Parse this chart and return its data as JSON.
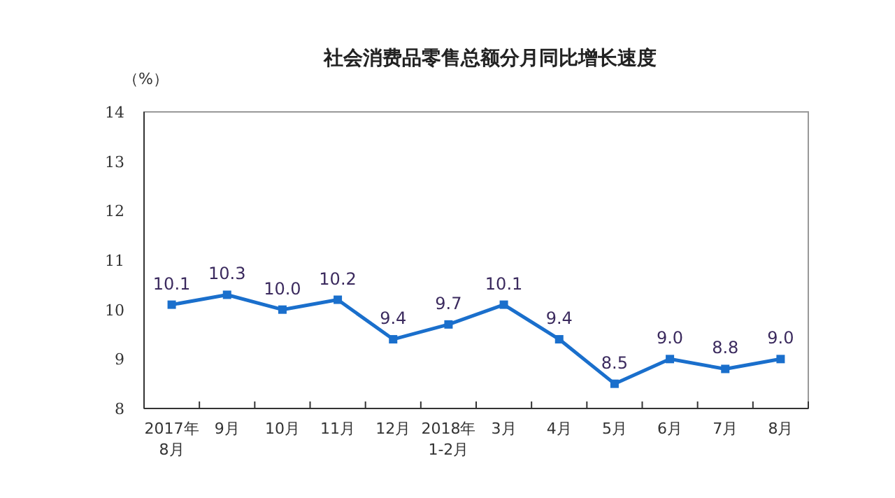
{
  "chart_data": {
    "type": "line",
    "title": "社会消费品零售总额分月同比增长速度",
    "ylabel": "（%）",
    "categories": [
      "2017年\n8月",
      "9月",
      "10月",
      "11月",
      "12月",
      "2018年\n1-2月",
      "3月",
      "4月",
      "5月",
      "6月",
      "7月",
      "8月"
    ],
    "series": [
      {
        "color": "#1a6fcc",
        "values": [
          10.1,
          10.3,
          10.0,
          10.2,
          9.4,
          9.7,
          10.1,
          9.4,
          8.5,
          9.0,
          8.8,
          9.0
        ],
        "value_labels": [
          "10.1",
          "10.3",
          "10.0",
          "10.2",
          "9.4",
          "9.7",
          "10.1",
          "9.4",
          "8.5",
          "9.0",
          "8.8",
          "9.0"
        ]
      }
    ],
    "ylim": [
      8,
      14
    ],
    "yticks": [
      8,
      9,
      10,
      11,
      12,
      13,
      14
    ],
    "marker": "square",
    "grid": false,
    "line_style": "solid"
  }
}
